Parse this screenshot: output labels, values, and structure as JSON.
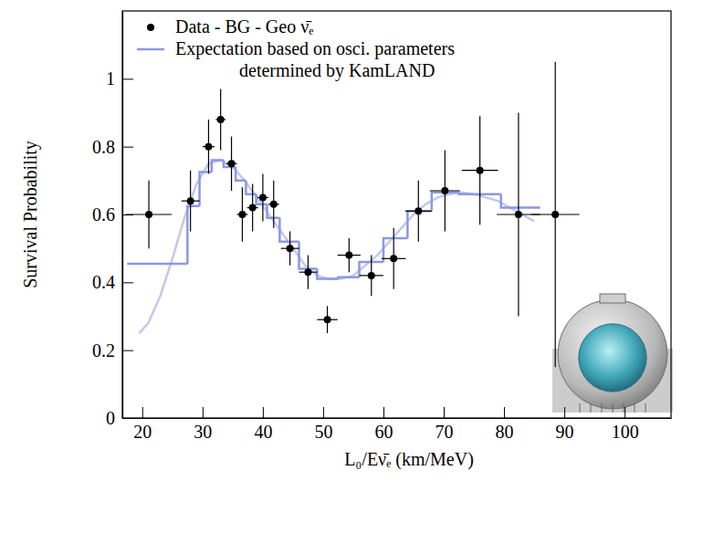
{
  "chart_data": {
    "type": "scatter",
    "xlabel": "L₀/Eν̄ₑ (km/MeV)",
    "ylabel": "Survival Probability",
    "xlim": [
      16.7,
      107.7
    ],
    "ylim": [
      0,
      1.2
    ],
    "xticks": [
      20,
      30,
      40,
      50,
      60,
      70,
      80,
      90,
      100
    ],
    "yticks": [
      0,
      0.2,
      0.4,
      0.6,
      0.8,
      1
    ],
    "grid": false,
    "legend": "upper left",
    "series": [
      {
        "name": "Data - BG - Geo ν̄ₑ",
        "type": "scatter",
        "color": "#000000",
        "marker": "circle",
        "x": [
          21.1,
          28.0,
          31.0,
          33.0,
          34.8,
          36.6,
          38.3,
          40.0,
          41.8,
          44.5,
          47.5,
          50.7,
          54.3,
          58.0,
          61.7,
          65.8,
          70.2,
          76.0,
          82.4,
          88.5
        ],
        "values": [
          0.6,
          0.64,
          0.8,
          0.88,
          0.75,
          0.6,
          0.62,
          0.65,
          0.63,
          0.5,
          0.43,
          0.29,
          0.48,
          0.42,
          0.47,
          0.61,
          0.67,
          0.73,
          0.6,
          0.6
        ],
        "yerr": [
          0.1,
          0.09,
          0.08,
          0.09,
          0.08,
          0.08,
          0.07,
          0.07,
          0.07,
          0.05,
          0.05,
          0.04,
          0.05,
          0.06,
          0.09,
          0.09,
          0.12,
          0.16,
          0.3,
          0.45
        ],
        "xerr": [
          3.8,
          1.5,
          1.0,
          0.8,
          0.9,
          0.9,
          0.9,
          0.9,
          0.9,
          1.5,
          1.5,
          1.7,
          1.9,
          2.0,
          2.0,
          2.2,
          2.5,
          3.0,
          3.6,
          4.0
        ]
      },
      {
        "name": "Expectation based on osci. parameters determined by KamLAND",
        "type": "step",
        "color": "#8c98de",
        "bins": [
          17.5,
          27.5,
          29.5,
          31.5,
          33.5,
          35.5,
          37.2,
          38.9,
          40.7,
          42.8,
          46,
          49,
          52.5,
          56,
          60,
          64,
          68,
          72.5,
          79.5,
          86
        ],
        "values": [
          0.455,
          0.625,
          0.725,
          0.76,
          0.74,
          0.7,
          0.66,
          0.63,
          0.59,
          0.52,
          0.44,
          0.41,
          0.415,
          0.46,
          0.53,
          0.61,
          0.665,
          0.66,
          0.62
        ]
      },
      {
        "type": "line",
        "color": "#c2c8ef",
        "x": [
          19.5,
          21,
          23,
          25,
          27,
          29,
          31,
          33,
          35,
          37,
          39,
          41,
          43,
          45,
          47,
          49,
          51,
          53,
          55,
          57,
          59,
          61,
          63,
          65,
          67,
          69,
          71,
          73,
          75,
          77,
          79,
          81,
          83,
          85
        ],
        "values": [
          0.25,
          0.28,
          0.36,
          0.47,
          0.59,
          0.69,
          0.75,
          0.76,
          0.74,
          0.7,
          0.65,
          0.6,
          0.55,
          0.5,
          0.45,
          0.42,
          0.41,
          0.41,
          0.42,
          0.45,
          0.48,
          0.52,
          0.56,
          0.6,
          0.63,
          0.65,
          0.66,
          0.665,
          0.66,
          0.65,
          0.64,
          0.62,
          0.6,
          0.58
        ]
      }
    ]
  }
}
